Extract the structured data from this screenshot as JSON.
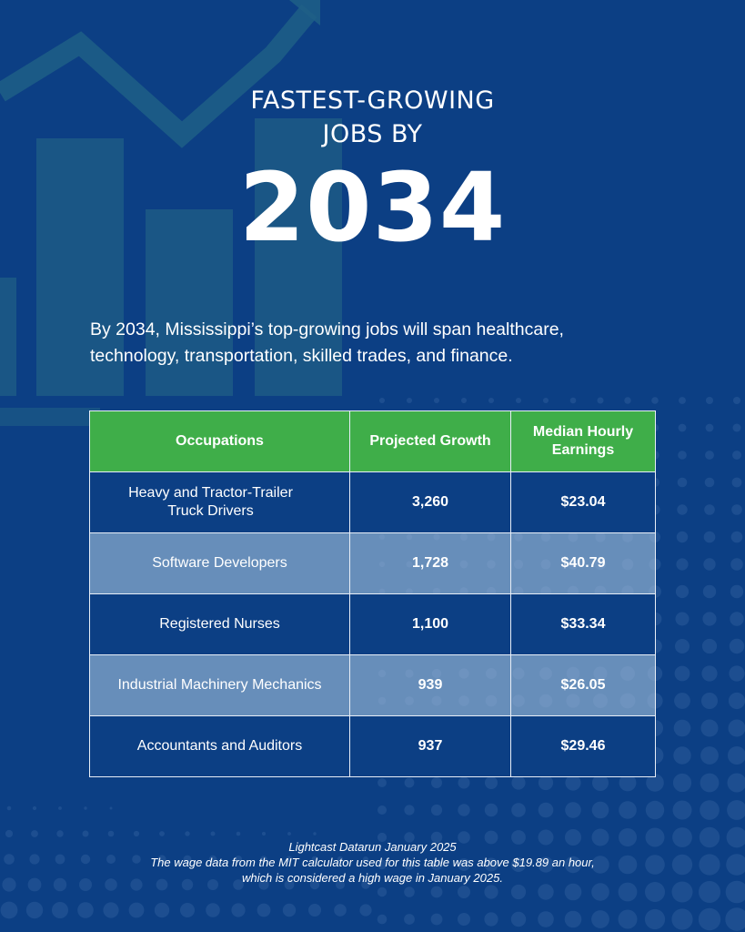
{
  "header": {
    "title_line1": "FASTEST-GROWING",
    "title_line2": "JOBS BY",
    "year": "2034"
  },
  "intro": "By 2034, Mississippi’s top-growing jobs will span healthcare, technology,  transportation, skilled trades, and finance.",
  "table": {
    "columns": [
      "Occupations",
      "Projected Growth",
      "Median Hourly Earnings"
    ],
    "rows": [
      {
        "occupation": "Heavy and Tractor-Trailer Truck Drivers",
        "growth": "3,260",
        "earnings": "$23.04"
      },
      {
        "occupation": "Software Developers",
        "growth": "1,728",
        "earnings": "$40.79"
      },
      {
        "occupation": "Registered Nurses",
        "growth": "1,100",
        "earnings": "$33.34"
      },
      {
        "occupation": "Industrial Machinery Mechanics",
        "growth": "939",
        "earnings": "$26.05"
      },
      {
        "occupation": "Accountants and Auditors",
        "growth": "937",
        "earnings": "$29.46"
      }
    ]
  },
  "footer": {
    "source": "Lightcast Datarun January 2025",
    "note_line1": "The wage data from the MIT calculator used for this table was above $19.89 an hour,",
    "note_line2": "which is considered a high wage in January 2025."
  },
  "colors": {
    "background": "#0c3f84",
    "header_green": "#3fae49",
    "alt_row": "#8ea9c8",
    "decor_teal": "#1f5f86"
  }
}
